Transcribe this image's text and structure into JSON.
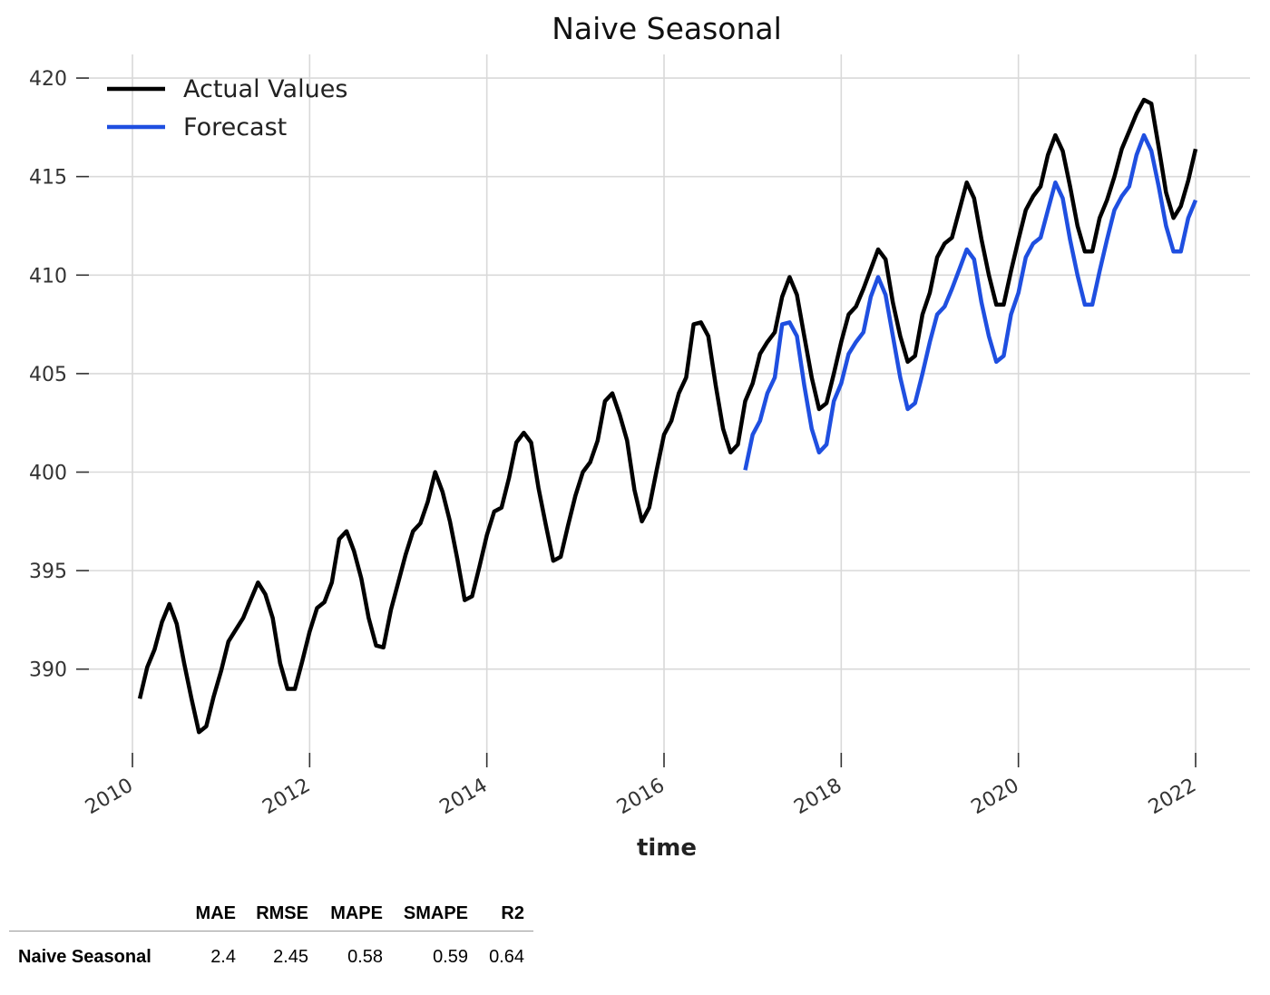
{
  "chart_data": {
    "type": "line",
    "title": "Naive Seasonal",
    "xlabel": "time",
    "ylabel": "",
    "xlim": [
      2009.95,
      2022.55
    ],
    "ylim": [
      385.2,
      421.2
    ],
    "xticks": [
      2010,
      2012,
      2014,
      2016,
      2018,
      2020,
      2022
    ],
    "xtick_labels": [
      "2010",
      "2012",
      "2014",
      "2016",
      "2018",
      "2020",
      "2022"
    ],
    "yticks": [
      390,
      395,
      400,
      405,
      410,
      415,
      420
    ],
    "ytick_labels": [
      "390",
      "395",
      "400",
      "405",
      "410",
      "415",
      "420"
    ],
    "grid": true,
    "legend_position": "top-left",
    "series": [
      {
        "name": "Actual Values",
        "color": "#000000",
        "start": "2010-02",
        "frequency": "monthly",
        "values": [
          388.5,
          390.1,
          391.0,
          392.4,
          393.3,
          392.3,
          390.3,
          388.5,
          386.8,
          387.1,
          388.6,
          389.9,
          391.4,
          392.0,
          392.6,
          393.5,
          394.4,
          393.8,
          392.6,
          390.3,
          389.0,
          389.0,
          390.4,
          391.9,
          393.1,
          393.4,
          394.4,
          396.6,
          397.0,
          396.0,
          394.6,
          392.6,
          391.2,
          391.1,
          393.0,
          394.4,
          395.8,
          397.0,
          397.4,
          398.5,
          400.0,
          399.0,
          397.5,
          395.6,
          393.5,
          393.7,
          395.2,
          396.8,
          398.0,
          398.2,
          399.7,
          401.5,
          402.0,
          401.5,
          399.2,
          397.3,
          395.5,
          395.7,
          397.3,
          398.8,
          400.0,
          400.5,
          401.6,
          403.6,
          404.0,
          402.9,
          401.6,
          399.1,
          397.5,
          398.2,
          400.1,
          401.9,
          402.6,
          404.0,
          404.8,
          407.5,
          407.6,
          406.9,
          404.4,
          402.2,
          401.0,
          401.4,
          403.6,
          404.5,
          406.0,
          406.6,
          407.1,
          408.9,
          409.9,
          409.0,
          406.9,
          404.8,
          403.2,
          403.5,
          405.0,
          406.6,
          408.0,
          408.4,
          409.3,
          410.3,
          411.3,
          410.8,
          408.6,
          406.9,
          405.6,
          405.9,
          408.0,
          409.1,
          410.9,
          411.6,
          411.9,
          413.3,
          414.7,
          413.9,
          411.8,
          410.0,
          408.5,
          408.5,
          410.2,
          411.8,
          413.3,
          414.0,
          414.5,
          416.1,
          417.1,
          416.3,
          414.5,
          412.5,
          411.2,
          411.2,
          412.9,
          413.8,
          415.0,
          416.4,
          417.3,
          418.2,
          418.9,
          418.7,
          416.5,
          414.2,
          412.9,
          413.5,
          414.8,
          416.4
        ]
      },
      {
        "name": "Forecast",
        "color": "#1f4fe0",
        "start": "2016-12",
        "frequency": "monthly",
        "values": [
          400.1,
          401.9,
          402.6,
          404.0,
          404.8,
          407.5,
          407.6,
          406.9,
          404.4,
          402.2,
          401.0,
          401.4,
          403.6,
          404.5,
          406.0,
          406.6,
          407.1,
          408.9,
          409.9,
          409.0,
          406.9,
          404.8,
          403.2,
          403.5,
          405.0,
          406.6,
          408.0,
          408.4,
          409.3,
          410.3,
          411.3,
          410.8,
          408.6,
          406.9,
          405.6,
          405.9,
          408.0,
          409.1,
          410.9,
          411.6,
          411.9,
          413.3,
          414.7,
          413.9,
          411.8,
          410.0,
          408.5,
          408.5,
          410.2,
          411.8,
          413.3,
          414.0,
          414.5,
          416.1,
          417.1,
          416.3,
          414.5,
          412.5,
          411.2,
          411.2,
          412.9,
          413.8
        ]
      }
    ]
  },
  "metrics_table": {
    "headers": [
      "",
      "MAE",
      "RMSE",
      "MAPE",
      "SMAPE",
      "R2"
    ],
    "rows": [
      {
        "label": "Naive Seasonal",
        "values": [
          "2.4",
          "2.45",
          "0.58",
          "0.59",
          "0.64"
        ]
      }
    ]
  }
}
